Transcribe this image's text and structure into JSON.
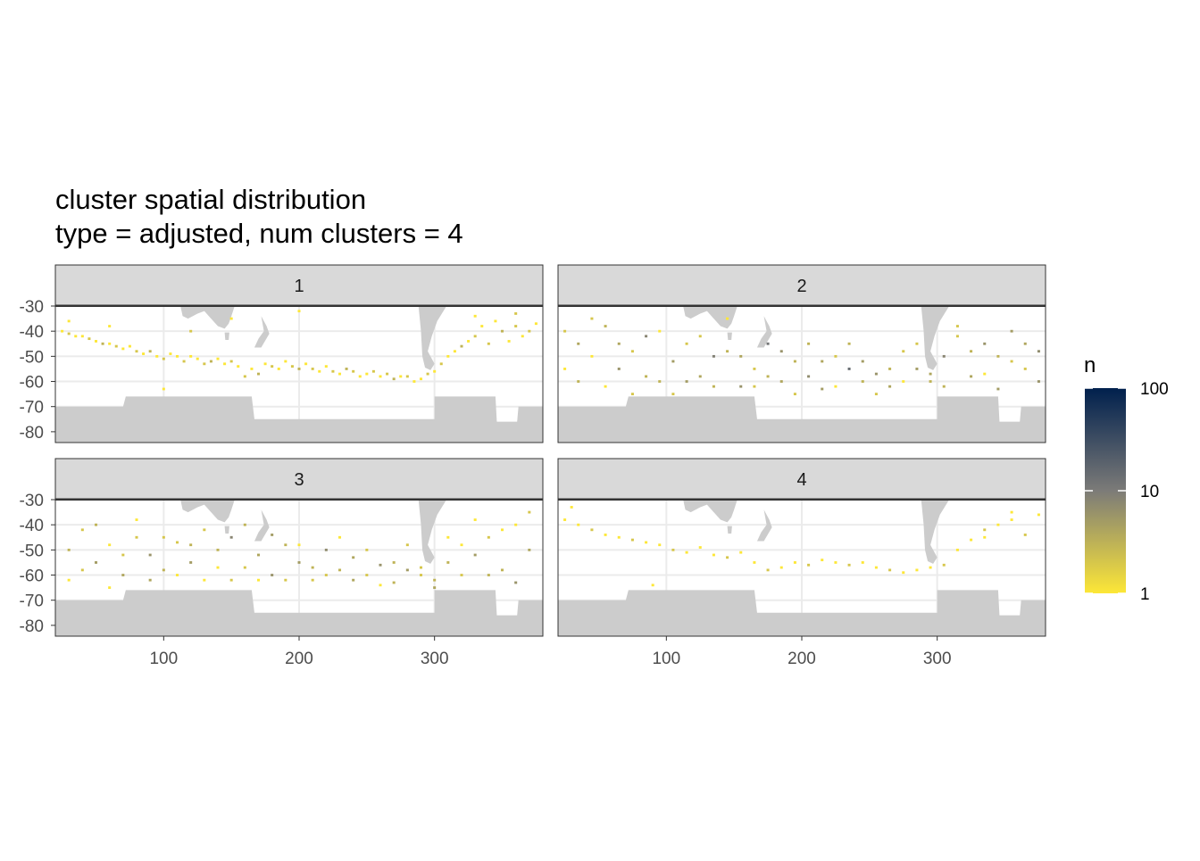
{
  "chart_data": {
    "type": "tile",
    "title": "cluster spatial distribution",
    "subtitle": "type = adjusted, num clusters = 4",
    "xlim": [
      20,
      380
    ],
    "ylim": [
      -84.3,
      -30
    ],
    "xticks": [
      100,
      200,
      300
    ],
    "yticks": [
      -30,
      -40,
      -50,
      -60,
      -70,
      -80
    ],
    "grid": true,
    "color_scale": {
      "title": "n",
      "log": true,
      "lim": [
        1,
        100
      ],
      "ticks": [
        1,
        10,
        100
      ],
      "colors": [
        "#fde737",
        "#7c7b78",
        "#00204d"
      ]
    },
    "facets": [
      {
        "label": "1",
        "x": [
          25,
          30,
          35,
          40,
          45,
          50,
          55,
          60,
          65,
          70,
          75,
          80,
          85,
          90,
          95,
          100,
          105,
          110,
          115,
          120,
          125,
          130,
          135,
          140,
          145,
          150,
          155,
          160,
          165,
          170,
          175,
          180,
          185,
          190,
          195,
          200,
          205,
          210,
          215,
          220,
          225,
          230,
          235,
          240,
          245,
          250,
          255,
          260,
          265,
          270,
          275,
          280,
          285,
          290,
          295,
          300,
          305,
          310,
          315,
          320,
          325,
          330,
          335,
          340,
          345,
          350,
          355,
          360,
          365,
          370,
          375,
          30,
          60,
          120,
          150,
          330,
          360,
          200,
          100
        ],
        "y": [
          -40,
          -41,
          -42,
          -42,
          -43,
          -44,
          -45,
          -45,
          -46,
          -47,
          -46,
          -48,
          -49,
          -48,
          -50,
          -51,
          -49,
          -50,
          -52,
          -50,
          -51,
          -53,
          -52,
          -51,
          -53,
          -52,
          -54,
          -58,
          -55,
          -57,
          -53,
          -54,
          -55,
          -52,
          -54,
          -55,
          -53,
          -55,
          -56,
          -54,
          -56,
          -57,
          -55,
          -56,
          -58,
          -57,
          -56,
          -58,
          -57,
          -59,
          -58,
          -58,
          -60,
          -59,
          -57,
          -56,
          -53,
          -50,
          -48,
          -46,
          -44,
          -42,
          -38,
          -45,
          -36,
          -40,
          -44,
          -38,
          -42,
          -40,
          -37,
          -36,
          -38,
          -40,
          -35,
          -34,
          -33,
          -32,
          -63
        ],
        "n": [
          1,
          2,
          1,
          1,
          2,
          1,
          3,
          1,
          2,
          1,
          1,
          2,
          1,
          3,
          1,
          2,
          1,
          1,
          2,
          1,
          1,
          2,
          3,
          1,
          1,
          2,
          1,
          2,
          1,
          3,
          1,
          2,
          1,
          1,
          2,
          3,
          1,
          2,
          1,
          1,
          2,
          1,
          3,
          2,
          1,
          1,
          2,
          1,
          2,
          3,
          1,
          2,
          1,
          1,
          2,
          1,
          2,
          1,
          1,
          3,
          1,
          2,
          1,
          2,
          1,
          3,
          1,
          2,
          1,
          2,
          1,
          1,
          1,
          2,
          1,
          1,
          2,
          1,
          1
        ]
      },
      {
        "label": "2",
        "x": [
          25,
          35,
          45,
          55,
          65,
          75,
          85,
          95,
          105,
          115,
          125,
          135,
          145,
          155,
          165,
          175,
          185,
          195,
          205,
          215,
          225,
          235,
          245,
          255,
          265,
          275,
          285,
          295,
          305,
          315,
          325,
          335,
          345,
          355,
          365,
          375,
          25,
          35,
          45,
          55,
          65,
          75,
          85,
          95,
          105,
          115,
          125,
          135,
          145,
          155,
          165,
          175,
          185,
          195,
          205,
          215,
          225,
          235,
          245,
          255,
          265,
          275,
          285,
          295,
          305,
          315,
          325,
          335,
          345,
          355,
          365,
          375
        ],
        "y": [
          -40,
          -45,
          -50,
          -38,
          -55,
          -48,
          -42,
          -60,
          -52,
          -45,
          -58,
          -50,
          -48,
          -62,
          -55,
          -45,
          -60,
          -52,
          -58,
          -63,
          -50,
          -55,
          -60,
          -57,
          -62,
          -48,
          -55,
          -60,
          -50,
          -42,
          -58,
          -45,
          -50,
          -40,
          -55,
          -48,
          -55,
          -60,
          -35,
          -62,
          -45,
          -65,
          -58,
          -40,
          -65,
          -60,
          -42,
          -62,
          -35,
          -50,
          -62,
          -58,
          -48,
          -65,
          -45,
          -52,
          -62,
          -45,
          -52,
          -65,
          -55,
          -60,
          -45,
          -57,
          -62,
          -38,
          -48,
          -57,
          -63,
          -52,
          -45,
          -60
        ],
        "n": [
          2,
          4,
          1,
          3,
          6,
          2,
          8,
          3,
          5,
          2,
          4,
          9,
          3,
          6,
          2,
          12,
          4,
          3,
          7,
          5,
          2,
          15,
          3,
          6,
          4,
          2,
          5,
          3,
          8,
          2,
          4,
          6,
          3,
          5,
          2,
          7,
          1,
          3,
          2,
          1,
          4,
          2,
          3,
          1,
          2,
          5,
          2,
          3,
          1,
          4,
          2,
          3,
          6,
          2,
          3,
          4,
          1,
          3,
          5,
          2,
          3,
          1,
          2,
          4,
          3,
          2,
          3,
          1,
          5,
          2,
          4,
          6
        ]
      },
      {
        "label": "3",
        "x": [
          30,
          40,
          50,
          60,
          70,
          80,
          90,
          100,
          110,
          120,
          130,
          140,
          150,
          160,
          170,
          180,
          190,
          200,
          210,
          220,
          230,
          240,
          250,
          260,
          270,
          280,
          290,
          300,
          310,
          320,
          330,
          340,
          350,
          360,
          370,
          30,
          40,
          50,
          60,
          70,
          80,
          90,
          100,
          110,
          120,
          130,
          140,
          150,
          160,
          170,
          180,
          190,
          200,
          210,
          220,
          230,
          240,
          250,
          260,
          270,
          280,
          290,
          300,
          310,
          320,
          330,
          340,
          350,
          360,
          370
        ],
        "y": [
          -50,
          -42,
          -55,
          -48,
          -60,
          -45,
          -52,
          -58,
          -47,
          -55,
          -62,
          -50,
          -45,
          -57,
          -52,
          -60,
          -48,
          -55,
          -62,
          -50,
          -58,
          -53,
          -60,
          -56,
          -63,
          -58,
          -60,
          -65,
          -55,
          -48,
          -52,
          -45,
          -58,
          -40,
          -50,
          -62,
          -58,
          -40,
          -65,
          -52,
          -38,
          -62,
          -45,
          -60,
          -48,
          -42,
          -57,
          -62,
          -40,
          -62,
          -44,
          -62,
          -48,
          -57,
          -60,
          -45,
          -62,
          -50,
          -64,
          -55,
          -48,
          -57,
          -62,
          -45,
          -60,
          -38,
          -60,
          -42,
          -63,
          -35
        ],
        "n": [
          3,
          2,
          5,
          1,
          4,
          2,
          6,
          3,
          2,
          5,
          1,
          3,
          8,
          2,
          4,
          6,
          3,
          5,
          2,
          7,
          3,
          4,
          2,
          6,
          3,
          5,
          2,
          4,
          3,
          1,
          5,
          2,
          3,
          1,
          4,
          1,
          2,
          3,
          1,
          2,
          1,
          4,
          2,
          1,
          3,
          2,
          1,
          2,
          3,
          1,
          5,
          2,
          1,
          3,
          2,
          1,
          4,
          2,
          1,
          3,
          2,
          2,
          3,
          1,
          2,
          1,
          3,
          1,
          6,
          2
        ]
      },
      {
        "label": "4",
        "x": [
          25,
          35,
          45,
          55,
          65,
          75,
          85,
          95,
          105,
          115,
          125,
          135,
          145,
          155,
          165,
          175,
          185,
          195,
          205,
          215,
          225,
          235,
          245,
          255,
          265,
          275,
          285,
          295,
          305,
          315,
          325,
          335,
          345,
          355,
          365,
          375,
          30,
          355,
          335,
          90
        ],
        "y": [
          -38,
          -40,
          -42,
          -44,
          -45,
          -46,
          -47,
          -48,
          -50,
          -51,
          -49,
          -52,
          -53,
          -51,
          -55,
          -58,
          -57,
          -55,
          -56,
          -54,
          -55,
          -56,
          -55,
          -57,
          -58,
          -59,
          -58,
          -57,
          -56,
          -50,
          -46,
          -42,
          -40,
          -38,
          -44,
          -36,
          -33,
          -35,
          -45,
          -64
        ],
        "n": [
          1,
          1,
          2,
          1,
          1,
          2,
          1,
          1,
          2,
          1,
          1,
          1,
          2,
          1,
          1,
          2,
          1,
          1,
          2,
          1,
          1,
          2,
          1,
          1,
          2,
          1,
          1,
          1,
          2,
          1,
          1,
          2,
          1,
          1,
          2,
          1,
          1,
          1,
          1,
          1
        ]
      }
    ]
  }
}
